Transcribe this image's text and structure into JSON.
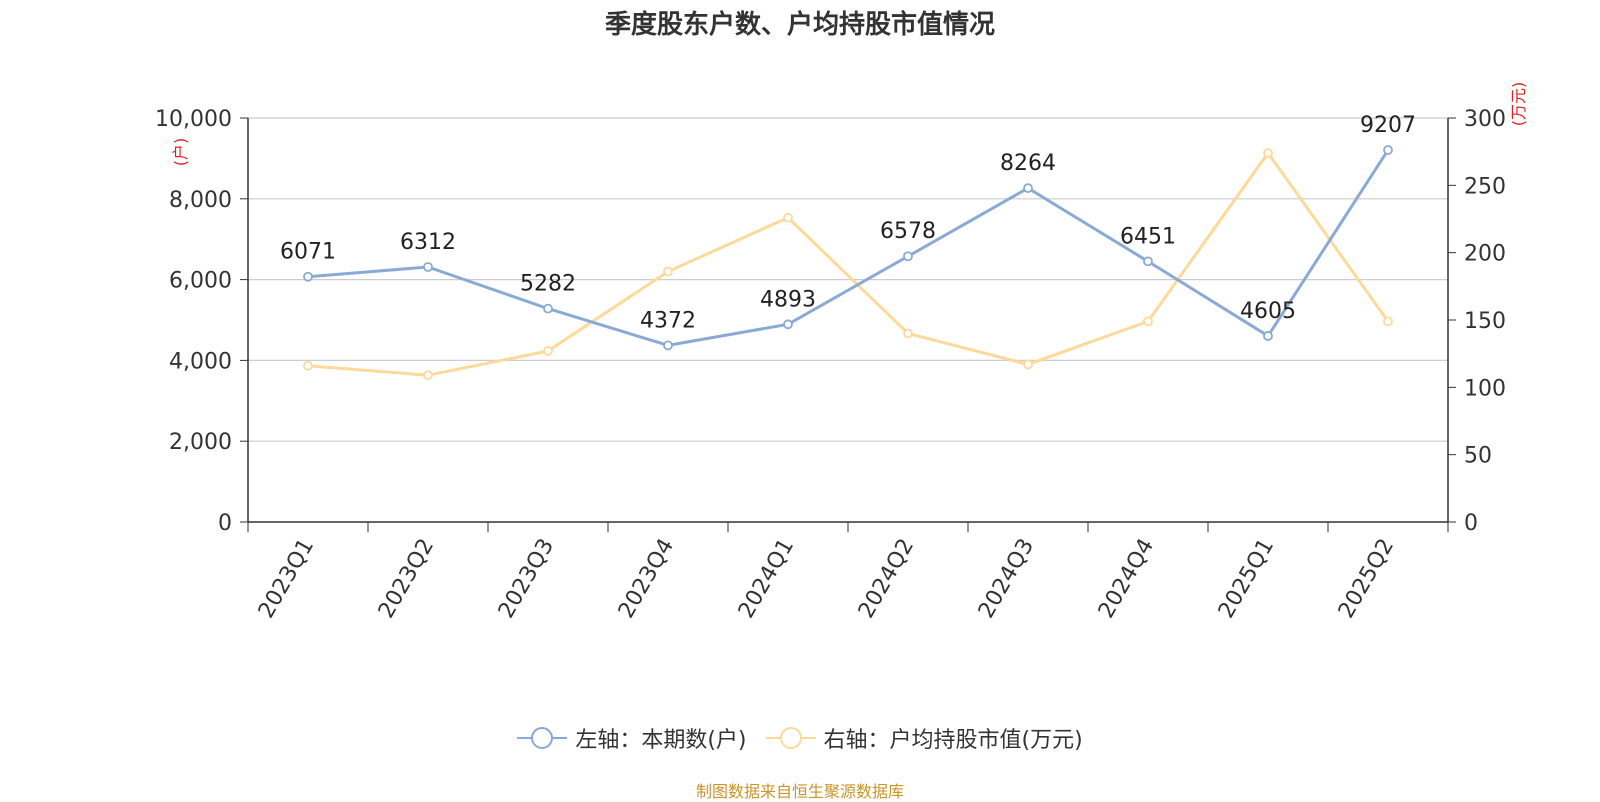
{
  "chart_data": {
    "type": "line",
    "title": "季度股东户数、户均持股市值情况",
    "categories": [
      "2023Q1",
      "2023Q2",
      "2023Q3",
      "2023Q4",
      "2024Q1",
      "2024Q2",
      "2024Q3",
      "2024Q4",
      "2025Q1",
      "2025Q2"
    ],
    "series": [
      {
        "name": "左轴：本期数(户)",
        "axis": "left",
        "color": "#8aaad6",
        "values": [
          6071,
          6312,
          5282,
          4372,
          4893,
          6578,
          8264,
          6451,
          4605,
          9207
        ],
        "show_labels": true
      },
      {
        "name": "右轴：户均持股市值(万元)",
        "axis": "right",
        "color": "#fdd99a",
        "values": [
          116,
          109,
          127,
          186,
          226,
          140,
          117,
          149,
          274,
          149
        ],
        "show_labels": false
      }
    ],
    "y_left": {
      "label": "(户)",
      "ylim": [
        0,
        10000
      ],
      "ticks": [
        "0",
        "2,000",
        "4,000",
        "6,000",
        "8,000",
        "10,000"
      ]
    },
    "y_right": {
      "label": "(万元)",
      "ylim": [
        0,
        300
      ],
      "ticks": [
        "0",
        "50",
        "100",
        "150",
        "200",
        "250",
        "300"
      ]
    },
    "grid": true,
    "legend_position": "bottom-center"
  },
  "source_note": "制图数据来自恒生聚源数据库"
}
